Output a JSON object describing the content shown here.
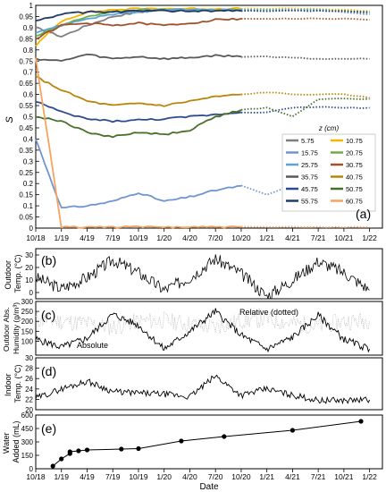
{
  "figure": {
    "date_axis_label": "Date",
    "x_ticks": [
      "10/18",
      "1/19",
      "4/19",
      "7/19",
      "10/19",
      "1/20",
      "4/20",
      "7/20",
      "10/20",
      "1/21",
      "4/21",
      "7/21",
      "10/21",
      "1/22"
    ]
  },
  "chart_data": [
    {
      "panel": "(a)",
      "type": "line",
      "ylabel": "S",
      "ylim": [
        0,
        1
      ],
      "y_ticks": [
        "0",
        "0.05",
        "0.1",
        "0.15",
        "0.2",
        "0.25",
        "0.3",
        "0.35",
        "0.4",
        "0.45",
        "0.5",
        "0.55",
        "0.6",
        "0.65",
        "0.7",
        "0.75",
        "0.8",
        "0.85",
        "0.9",
        "0.95",
        "1"
      ],
      "legend_title": "z (cm)",
      "legend_position": "right",
      "measured_until": "10/20",
      "gap_style": "dotted",
      "x": [
        "10/18",
        "1/19",
        "4/19",
        "7/19",
        "10/19",
        "1/20",
        "4/20",
        "7/20",
        "10/20",
        "1/21",
        "4/21",
        "7/21",
        "10/21",
        "1/22"
      ],
      "series": [
        {
          "name": "5.75",
          "color": "#7f7f7f",
          "values": [
            0.9,
            0.86,
            0.91,
            0.95,
            0.97,
            0.98,
            0.98,
            0.98,
            0.98,
            0.98,
            0.98,
            0.98,
            0.97,
            0.96
          ]
        },
        {
          "name": "10.75",
          "color": "#f4b400",
          "values": [
            0.82,
            0.93,
            0.97,
            0.98,
            0.985,
            0.985,
            0.985,
            0.985,
            0.985,
            0.985,
            0.985,
            0.985,
            0.98,
            0.975
          ]
        },
        {
          "name": "15.75",
          "color": "#6f96d1",
          "values": [
            0.4,
            0.09,
            0.1,
            0.12,
            0.16,
            0.12,
            0.14,
            0.17,
            0.19,
            0.15,
            0.19,
            0.18,
            0.16,
            0.13
          ]
        },
        {
          "name": "20.75",
          "color": "#70ad47",
          "values": [
            0.86,
            0.91,
            0.95,
            0.97,
            0.98,
            0.98,
            0.98,
            0.98,
            0.98,
            0.98,
            0.98,
            0.98,
            0.975,
            0.97
          ]
        },
        {
          "name": "25.75",
          "color": "#5ba3d9",
          "values": [
            0.88,
            0.91,
            0.94,
            0.96,
            0.97,
            0.98,
            0.98,
            0.98,
            0.98,
            0.98,
            0.98,
            0.98,
            0.97,
            0.965
          ]
        },
        {
          "name": "30.75",
          "color": "#a0522d",
          "values": [
            0.85,
            0.91,
            0.92,
            0.91,
            0.92,
            0.91,
            0.92,
            0.935,
            0.94,
            0.94,
            0.94,
            0.94,
            0.94,
            0.935
          ]
        },
        {
          "name": "35.75",
          "color": "#595959",
          "values": [
            0.76,
            0.75,
            0.78,
            0.76,
            0.77,
            0.76,
            0.765,
            0.775,
            0.77,
            0.77,
            0.765,
            0.76,
            0.76,
            0.76
          ]
        },
        {
          "name": "40.75",
          "color": "#b8860b",
          "values": [
            0.68,
            0.62,
            0.57,
            0.55,
            0.56,
            0.55,
            0.57,
            0.59,
            0.6,
            0.61,
            0.6,
            0.6,
            0.6,
            0.585
          ]
        },
        {
          "name": "45.75",
          "color": "#2e4b8f",
          "values": [
            0.57,
            0.52,
            0.49,
            0.48,
            0.485,
            0.49,
            0.5,
            0.51,
            0.52,
            0.52,
            0.54,
            0.545,
            0.54,
            0.54
          ]
        },
        {
          "name": "50.75",
          "color": "#4a6f2a",
          "values": [
            0.5,
            0.48,
            0.43,
            0.41,
            0.43,
            0.42,
            0.44,
            0.5,
            0.53,
            0.54,
            0.5,
            0.58,
            0.58,
            0.58
          ]
        },
        {
          "name": "55.75",
          "color": "#1f3a6b",
          "values": [
            0.93,
            0.96,
            0.97,
            0.97,
            0.975,
            0.975,
            0.975,
            0.975,
            0.975,
            0.975,
            0.975,
            0.975,
            0.975,
            0.97
          ]
        },
        {
          "name": "60.75",
          "color": "#f4a460",
          "values": [
            0.76,
            0.005,
            0.005,
            0.005,
            0.005,
            0.005,
            0.005,
            0.005,
            0.005,
            0.005,
            0.005,
            0.005,
            0.005,
            0.005
          ]
        }
      ]
    },
    {
      "panel": "(b)",
      "type": "line",
      "ylabel": "Outdoor Temp. (°C)",
      "ylim": [
        -5,
        35
      ],
      "y_ticks": [
        "0",
        "10",
        "20",
        "30"
      ],
      "color": "#000000",
      "x": [
        "10/18",
        "1/19",
        "4/19",
        "7/19",
        "10/19",
        "1/20",
        "4/20",
        "7/20",
        "10/20",
        "1/21",
        "4/21",
        "7/21",
        "10/21",
        "1/22"
      ],
      "series": [
        {
          "values": [
            12,
            3,
            12,
            26,
            16,
            2,
            12,
            27,
            15,
            -3,
            10,
            25,
            16,
            2
          ]
        }
      ]
    },
    {
      "panel": "(c)",
      "type": "line",
      "ylabel": "Outdoor Abs. Humidity (g/m³)",
      "ylim": [
        30,
        300
      ],
      "y_ticks": [
        "100",
        "150",
        "200",
        "250",
        "300"
      ],
      "annotations": [
        "Relative (dotted)",
        "Absolute"
      ],
      "x": [
        "10/18",
        "1/19",
        "4/19",
        "7/19",
        "10/19",
        "1/20",
        "4/20",
        "7/20",
        "10/20",
        "1/21",
        "4/21",
        "7/21",
        "10/21",
        "1/22"
      ],
      "series": [
        {
          "name": "Absolute",
          "color": "#000000",
          "style": "solid",
          "values": [
            110,
            70,
            115,
            235,
            180,
            60,
            150,
            250,
            130,
            60,
            120,
            230,
            110,
            60
          ]
        },
        {
          "name": "Relative",
          "color": "#b0b0b0",
          "style": "dotted",
          "values": [
            210,
            200,
            190,
            170,
            200,
            205,
            185,
            170,
            205,
            210,
            190,
            175,
            200,
            205
          ]
        }
      ]
    },
    {
      "panel": "(d)",
      "type": "line",
      "ylabel": "Indoor Temp. (°C)",
      "ylim": [
        20,
        30
      ],
      "y_ticks": [
        "20",
        "22",
        "24",
        "26",
        "28",
        "30"
      ],
      "color": "#000000",
      "x": [
        "10/18",
        "1/19",
        "4/19",
        "7/19",
        "10/19",
        "1/20",
        "4/20",
        "7/20",
        "10/20",
        "1/21",
        "4/21",
        "7/21",
        "10/21",
        "1/22"
      ],
      "series": [
        {
          "values": [
            22.2,
            24.0,
            25.5,
            23.5,
            23.2,
            23.0,
            22.5,
            26.5,
            22.8,
            24.0,
            22.8,
            21.8,
            21.8,
            21.9
          ]
        }
      ]
    },
    {
      "panel": "(e)",
      "type": "scatter",
      "ylabel": "Water Added (mL)",
      "ylim": [
        0,
        600
      ],
      "y_ticks": [
        "0",
        "150",
        "300",
        "450",
        "600"
      ],
      "color": "#000000",
      "x": [
        "12/18",
        "1/19",
        "2/19",
        "2/19",
        "3/19",
        "4/19",
        "8/19",
        "10/19",
        "3/20",
        "8/20",
        "4/21",
        "12/21"
      ],
      "values": [
        30,
        110,
        170,
        190,
        200,
        210,
        220,
        225,
        310,
        360,
        430,
        530
      ]
    }
  ]
}
